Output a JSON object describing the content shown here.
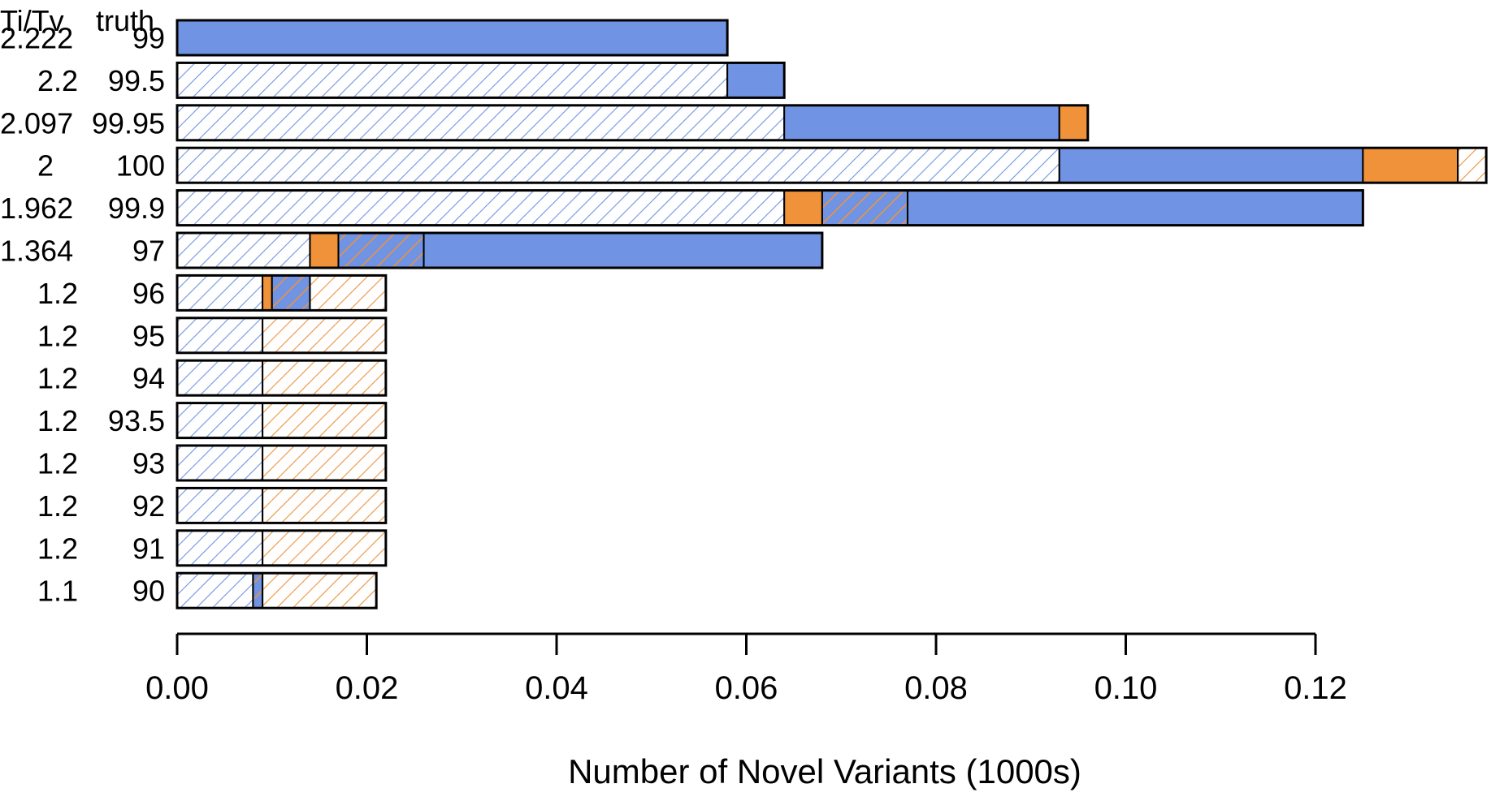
{
  "chart_data": {
    "type": "bar",
    "orientation": "horizontal",
    "stacked": true,
    "title": "",
    "xlabel": "Number of Novel Variants (1000s)",
    "ylabel": "",
    "xlim": [
      0,
      0.138
    ],
    "xticks": [
      0.0,
      0.02,
      0.04,
      0.06,
      0.08,
      0.1,
      0.12
    ],
    "xtick_labels": [
      "0.00",
      "0.02",
      "0.04",
      "0.06",
      "0.08",
      "0.10",
      "0.12"
    ],
    "row_headers": [
      "Ti/Tv",
      "truth"
    ],
    "categories": [
      {
        "titv": "2.222",
        "truth": "99"
      },
      {
        "titv": "2.2",
        "truth": "99.5"
      },
      {
        "titv": "2.097",
        "truth": "99.95"
      },
      {
        "titv": "2",
        "truth": "100"
      },
      {
        "titv": "1.962",
        "truth": "99.9"
      },
      {
        "titv": "1.364",
        "truth": "97"
      },
      {
        "titv": "1.2",
        "truth": "96"
      },
      {
        "titv": "1.2",
        "truth": "95"
      },
      {
        "titv": "1.2",
        "truth": "94"
      },
      {
        "titv": "1.2",
        "truth": "93.5"
      },
      {
        "titv": "1.2",
        "truth": "93"
      },
      {
        "titv": "1.2",
        "truth": "92"
      },
      {
        "titv": "1.2",
        "truth": "91"
      },
      {
        "titv": "1.1",
        "truth": "90"
      }
    ],
    "segments": [
      [
        {
          "kind": "blue-solid",
          "value": 0.058
        }
      ],
      [
        {
          "kind": "blue-hatch",
          "value": 0.058
        },
        {
          "kind": "blue-solid",
          "value": 0.006
        }
      ],
      [
        {
          "kind": "blue-hatch",
          "value": 0.064
        },
        {
          "kind": "blue-solid",
          "value": 0.029
        },
        {
          "kind": "orange-solid",
          "value": 0.003
        }
      ],
      [
        {
          "kind": "blue-hatch",
          "value": 0.093
        },
        {
          "kind": "blue-solid",
          "value": 0.032
        },
        {
          "kind": "orange-solid",
          "value": 0.01
        },
        {
          "kind": "orange-hatch",
          "value": 0.003
        }
      ],
      [
        {
          "kind": "blue-hatch",
          "value": 0.064
        },
        {
          "kind": "orange-solid",
          "value": 0.004
        },
        {
          "kind": "mixed-hatch",
          "value": 0.009
        },
        {
          "kind": "blue-solid",
          "value": 0.048
        }
      ],
      [
        {
          "kind": "blue-hatch",
          "value": 0.014
        },
        {
          "kind": "orange-solid",
          "value": 0.003
        },
        {
          "kind": "mixed-hatch",
          "value": 0.009
        },
        {
          "kind": "blue-solid",
          "value": 0.042
        }
      ],
      [
        {
          "kind": "blue-hatch",
          "value": 0.009
        },
        {
          "kind": "orange-solid",
          "value": 0.001
        },
        {
          "kind": "mixed-hatch",
          "value": 0.004
        },
        {
          "kind": "orange-hatch",
          "value": 0.008
        }
      ],
      [
        {
          "kind": "blue-hatch",
          "value": 0.009
        },
        {
          "kind": "orange-hatch",
          "value": 0.013
        }
      ],
      [
        {
          "kind": "blue-hatch",
          "value": 0.009
        },
        {
          "kind": "orange-hatch",
          "value": 0.013
        }
      ],
      [
        {
          "kind": "blue-hatch",
          "value": 0.009
        },
        {
          "kind": "orange-hatch",
          "value": 0.013
        }
      ],
      [
        {
          "kind": "blue-hatch",
          "value": 0.009
        },
        {
          "kind": "orange-hatch",
          "value": 0.013
        }
      ],
      [
        {
          "kind": "blue-hatch",
          "value": 0.009
        },
        {
          "kind": "orange-hatch",
          "value": 0.013
        }
      ],
      [
        {
          "kind": "blue-hatch",
          "value": 0.009
        },
        {
          "kind": "orange-hatch",
          "value": 0.013
        }
      ],
      [
        {
          "kind": "blue-hatch",
          "value": 0.008
        },
        {
          "kind": "mixed-hatch",
          "value": 0.001
        },
        {
          "kind": "orange-hatch",
          "value": 0.012
        }
      ]
    ],
    "colors": {
      "blue": "#7094E3",
      "orange": "#F0923A",
      "outline": "#000000"
    }
  }
}
